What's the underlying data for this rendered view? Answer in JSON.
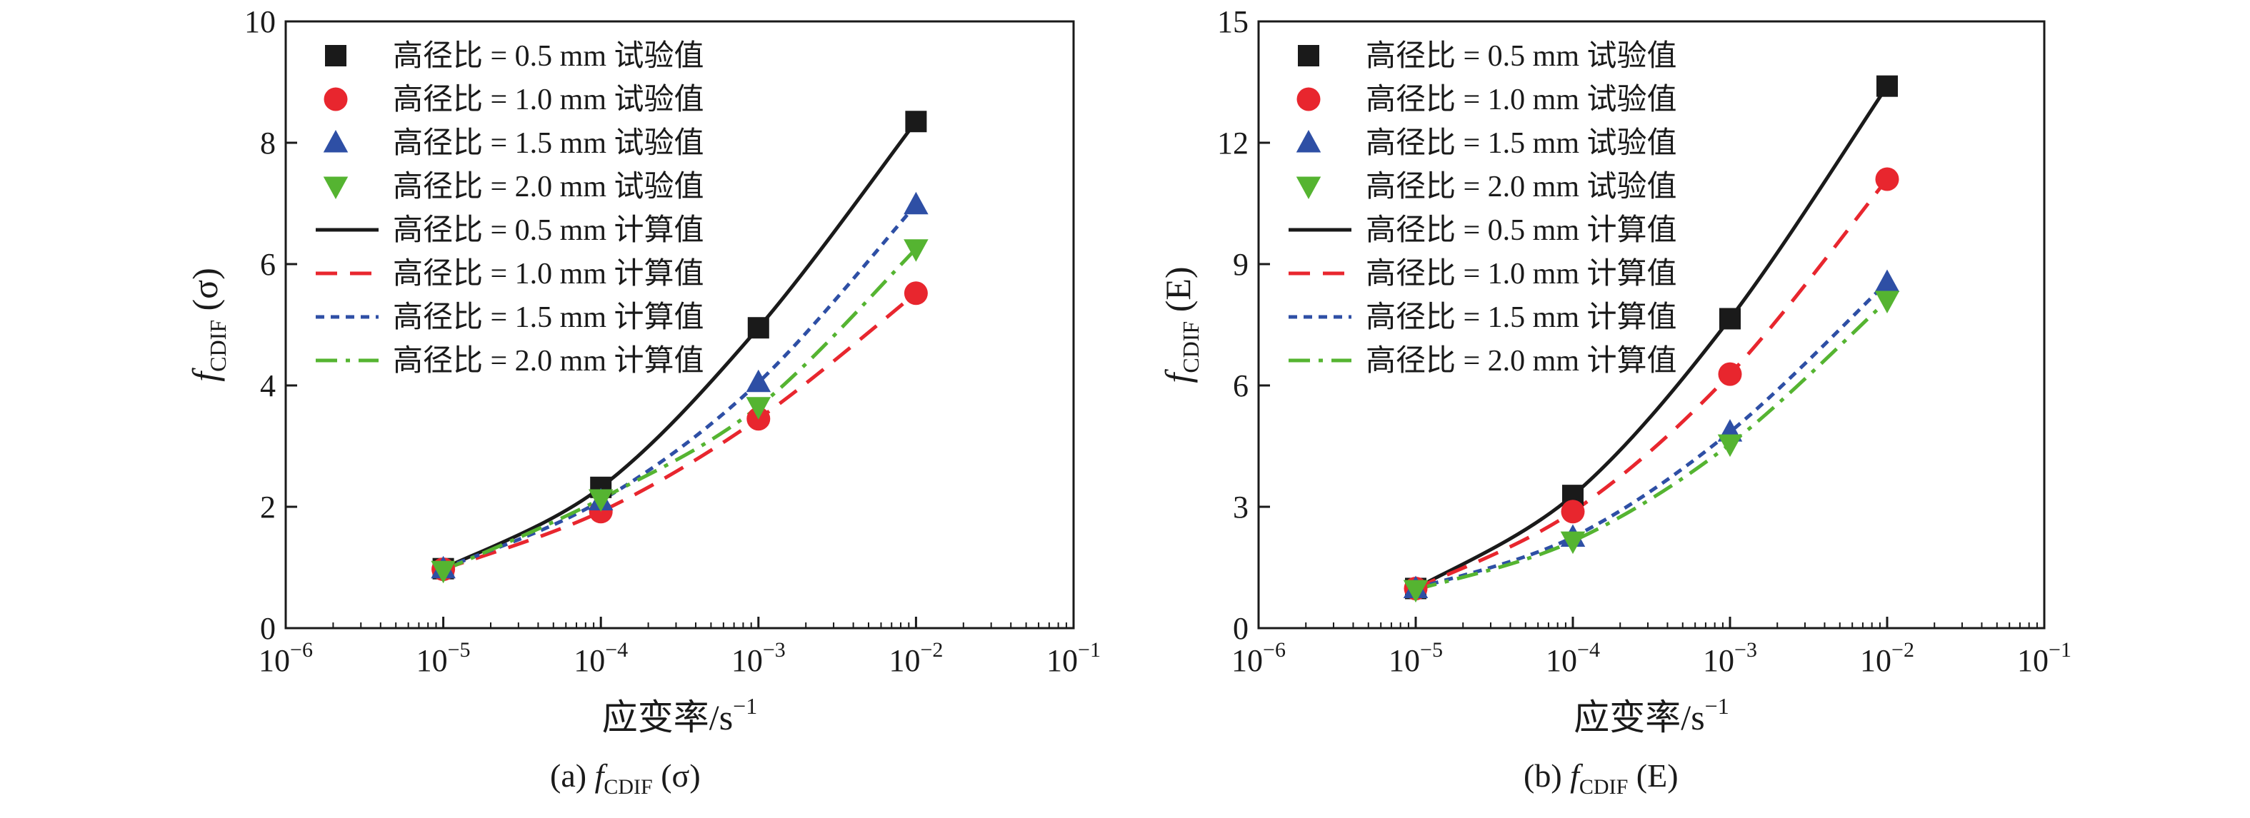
{
  "chart_data": [
    {
      "type": "line",
      "caption": {
        "prefix": "(a) ",
        "f": "f",
        "sub": "CDIF",
        "arg": "(σ)"
      },
      "ylabel": {
        "f": "f",
        "sub": "CDIF",
        "arg": "(σ)"
      },
      "xlabel": {
        "text": "应变率/s",
        "sup": "−1"
      },
      "xscale": "log",
      "xlim": [
        1e-06,
        0.1
      ],
      "ylim": [
        0,
        10
      ],
      "x_ticks": [
        {
          "value": 1e-06,
          "base": "10",
          "exp": "−6"
        },
        {
          "value": 1e-05,
          "base": "10",
          "exp": "−5"
        },
        {
          "value": 0.0001,
          "base": "10",
          "exp": "−4"
        },
        {
          "value": 0.001,
          "base": "10",
          "exp": "−3"
        },
        {
          "value": 0.01,
          "base": "10",
          "exp": "−2"
        },
        {
          "value": 0.1,
          "base": "10",
          "exp": "−1"
        }
      ],
      "y_ticks": [
        0,
        2,
        4,
        6,
        8,
        10
      ],
      "legend_position": "top-left",
      "series": [
        {
          "name": "高径比 = 0.5 mm 试验值",
          "kind": "marker",
          "marker": "square",
          "color": "#1a1a1a",
          "x": [
            1e-05,
            0.0001,
            0.001,
            0.01
          ],
          "y": [
            0.98,
            2.32,
            4.95,
            8.35
          ]
        },
        {
          "name": "高径比 = 1.0 mm 试验值",
          "kind": "marker",
          "marker": "circle",
          "color": "#e8262e",
          "x": [
            1e-05,
            0.0001,
            0.001,
            0.01
          ],
          "y": [
            0.97,
            1.92,
            3.45,
            5.52
          ]
        },
        {
          "name": "高径比 = 1.5 mm 试验值",
          "kind": "marker",
          "marker": "triangle-up",
          "color": "#2e4fa5",
          "x": [
            1e-05,
            0.0001,
            0.001,
            0.01
          ],
          "y": [
            0.98,
            2.1,
            4.05,
            6.98
          ]
        },
        {
          "name": "高径比 = 2.0 mm 试验值",
          "kind": "marker",
          "marker": "triangle-down",
          "color": "#55b431",
          "x": [
            1e-05,
            0.0001,
            0.001,
            0.01
          ],
          "y": [
            0.95,
            2.13,
            3.65,
            6.25
          ]
        },
        {
          "name": "高径比 = 0.5 mm 计算值",
          "kind": "line",
          "dash": "solid",
          "color": "#1a1a1a",
          "x": [
            1e-05,
            0.0001,
            0.001,
            0.01
          ],
          "y": [
            0.98,
            2.32,
            4.95,
            8.35
          ]
        },
        {
          "name": "高径比 = 1.0 mm 计算值",
          "kind": "line",
          "dash": "dash",
          "color": "#e8262e",
          "x": [
            1e-05,
            0.0001,
            0.001,
            0.01
          ],
          "y": [
            0.97,
            1.92,
            3.45,
            5.52
          ]
        },
        {
          "name": "高径比 = 1.5 mm 计算值",
          "kind": "line",
          "dash": "short-dash",
          "color": "#2e4fa5",
          "x": [
            1e-05,
            0.0001,
            0.001,
            0.01
          ],
          "y": [
            0.98,
            2.1,
            4.05,
            6.98
          ]
        },
        {
          "name": "高径比 = 2.0 mm 计算值",
          "kind": "line",
          "dash": "dash-dot",
          "color": "#55b431",
          "x": [
            1e-05,
            0.0001,
            0.001,
            0.01
          ],
          "y": [
            0.95,
            2.13,
            3.65,
            6.25
          ]
        }
      ]
    },
    {
      "type": "line",
      "caption": {
        "prefix": "(b) ",
        "f": "f",
        "sub": "CDIF",
        "arg": "(E)"
      },
      "ylabel": {
        "f": "f",
        "sub": "CDIF",
        "arg": "(E)"
      },
      "xlabel": {
        "text": "应变率/s",
        "sup": "−1"
      },
      "xscale": "log",
      "xlim": [
        1e-06,
        0.1
      ],
      "ylim": [
        0,
        15
      ],
      "x_ticks": [
        {
          "value": 1e-06,
          "base": "10",
          "exp": "−6"
        },
        {
          "value": 1e-05,
          "base": "10",
          "exp": "−5"
        },
        {
          "value": 0.0001,
          "base": "10",
          "exp": "−4"
        },
        {
          "value": 0.001,
          "base": "10",
          "exp": "−3"
        },
        {
          "value": 0.01,
          "base": "10",
          "exp": "−2"
        },
        {
          "value": 0.1,
          "base": "10",
          "exp": "−1"
        }
      ],
      "y_ticks": [
        0,
        3,
        6,
        9,
        12,
        15
      ],
      "legend_position": "top-left",
      "series": [
        {
          "name": "高径比 = 0.5 mm 试验值",
          "kind": "marker",
          "marker": "square",
          "color": "#1a1a1a",
          "x": [
            1e-05,
            0.0001,
            0.001,
            0.01
          ],
          "y": [
            0.98,
            3.28,
            7.65,
            13.4
          ]
        },
        {
          "name": "高径比 = 1.0 mm 试验值",
          "kind": "marker",
          "marker": "circle",
          "color": "#e8262e",
          "x": [
            1e-05,
            0.0001,
            0.001,
            0.01
          ],
          "y": [
            0.98,
            2.88,
            6.28,
            11.1
          ]
        },
        {
          "name": "高径比 = 1.5 mm 试验值",
          "kind": "marker",
          "marker": "triangle-up",
          "color": "#2e4fa5",
          "x": [
            1e-05,
            0.0001,
            0.001,
            0.01
          ],
          "y": [
            0.98,
            2.25,
            4.85,
            8.55
          ]
        },
        {
          "name": "高径比 = 2.0 mm 试验值",
          "kind": "marker",
          "marker": "triangle-down",
          "color": "#55b431",
          "x": [
            1e-05,
            0.0001,
            0.001,
            0.01
          ],
          "y": [
            0.95,
            2.15,
            4.55,
            8.1
          ]
        },
        {
          "name": "高径比 = 0.5 mm 计算值",
          "kind": "line",
          "dash": "solid",
          "color": "#1a1a1a",
          "x": [
            1e-05,
            0.0001,
            0.001,
            0.01
          ],
          "y": [
            0.98,
            3.28,
            7.65,
            13.4
          ]
        },
        {
          "name": "高径比 = 1.0 mm 计算值",
          "kind": "line",
          "dash": "dash",
          "color": "#e8262e",
          "x": [
            1e-05,
            0.0001,
            0.001,
            0.01
          ],
          "y": [
            0.98,
            2.88,
            6.28,
            11.1
          ]
        },
        {
          "name": "高径比 = 1.5 mm 计算值",
          "kind": "line",
          "dash": "short-dash",
          "color": "#2e4fa5",
          "x": [
            1e-05,
            0.0001,
            0.001,
            0.01
          ],
          "y": [
            0.98,
            2.25,
            4.85,
            8.55
          ]
        },
        {
          "name": "高径比 = 2.0 mm 计算值",
          "kind": "line",
          "dash": "dash-dot",
          "color": "#55b431",
          "x": [
            1e-05,
            0.0001,
            0.001,
            0.01
          ],
          "y": [
            0.95,
            2.15,
            4.55,
            8.1
          ]
        }
      ]
    }
  ]
}
